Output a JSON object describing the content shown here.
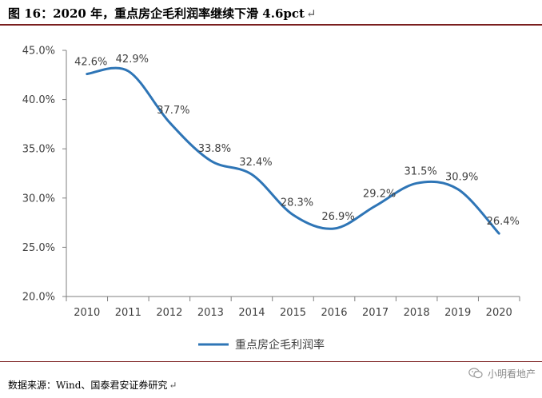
{
  "header": {
    "title": "图 16：2020 年，重点房企毛利润率继续下滑 4.6pct",
    "para_mark": "↵"
  },
  "chart_data": {
    "type": "line",
    "categories": [
      "2010",
      "2011",
      "2012",
      "2013",
      "2014",
      "2015",
      "2016",
      "2017",
      "2018",
      "2019",
      "2020"
    ],
    "series": [
      {
        "name": "重点房企毛利润率",
        "values": [
          42.6,
          42.9,
          37.7,
          33.8,
          32.4,
          28.3,
          26.9,
          29.2,
          31.5,
          30.9,
          26.4
        ],
        "labels": [
          "42.6%",
          "42.9%",
          "37.7%",
          "33.8%",
          "32.4%",
          "28.3%",
          "26.9%",
          "29.2%",
          "31.5%",
          "30.9%",
          "26.4%"
        ]
      }
    ],
    "ylim": [
      20,
      45
    ],
    "yticks": [
      20,
      25,
      30,
      35,
      40,
      45
    ],
    "ytick_labels": [
      "20.0%",
      "25.0%",
      "30.0%",
      "35.0%",
      "40.0%",
      "45.0%"
    ],
    "legend_position": "bottom",
    "grid": false,
    "line_color": "#2e75b6"
  },
  "footer": {
    "source": "数据来源：Wind、国泰君安证券研究",
    "para_mark": "↵",
    "watermark": "小明看地产",
    "watermark_icon": "wechat-icon"
  }
}
